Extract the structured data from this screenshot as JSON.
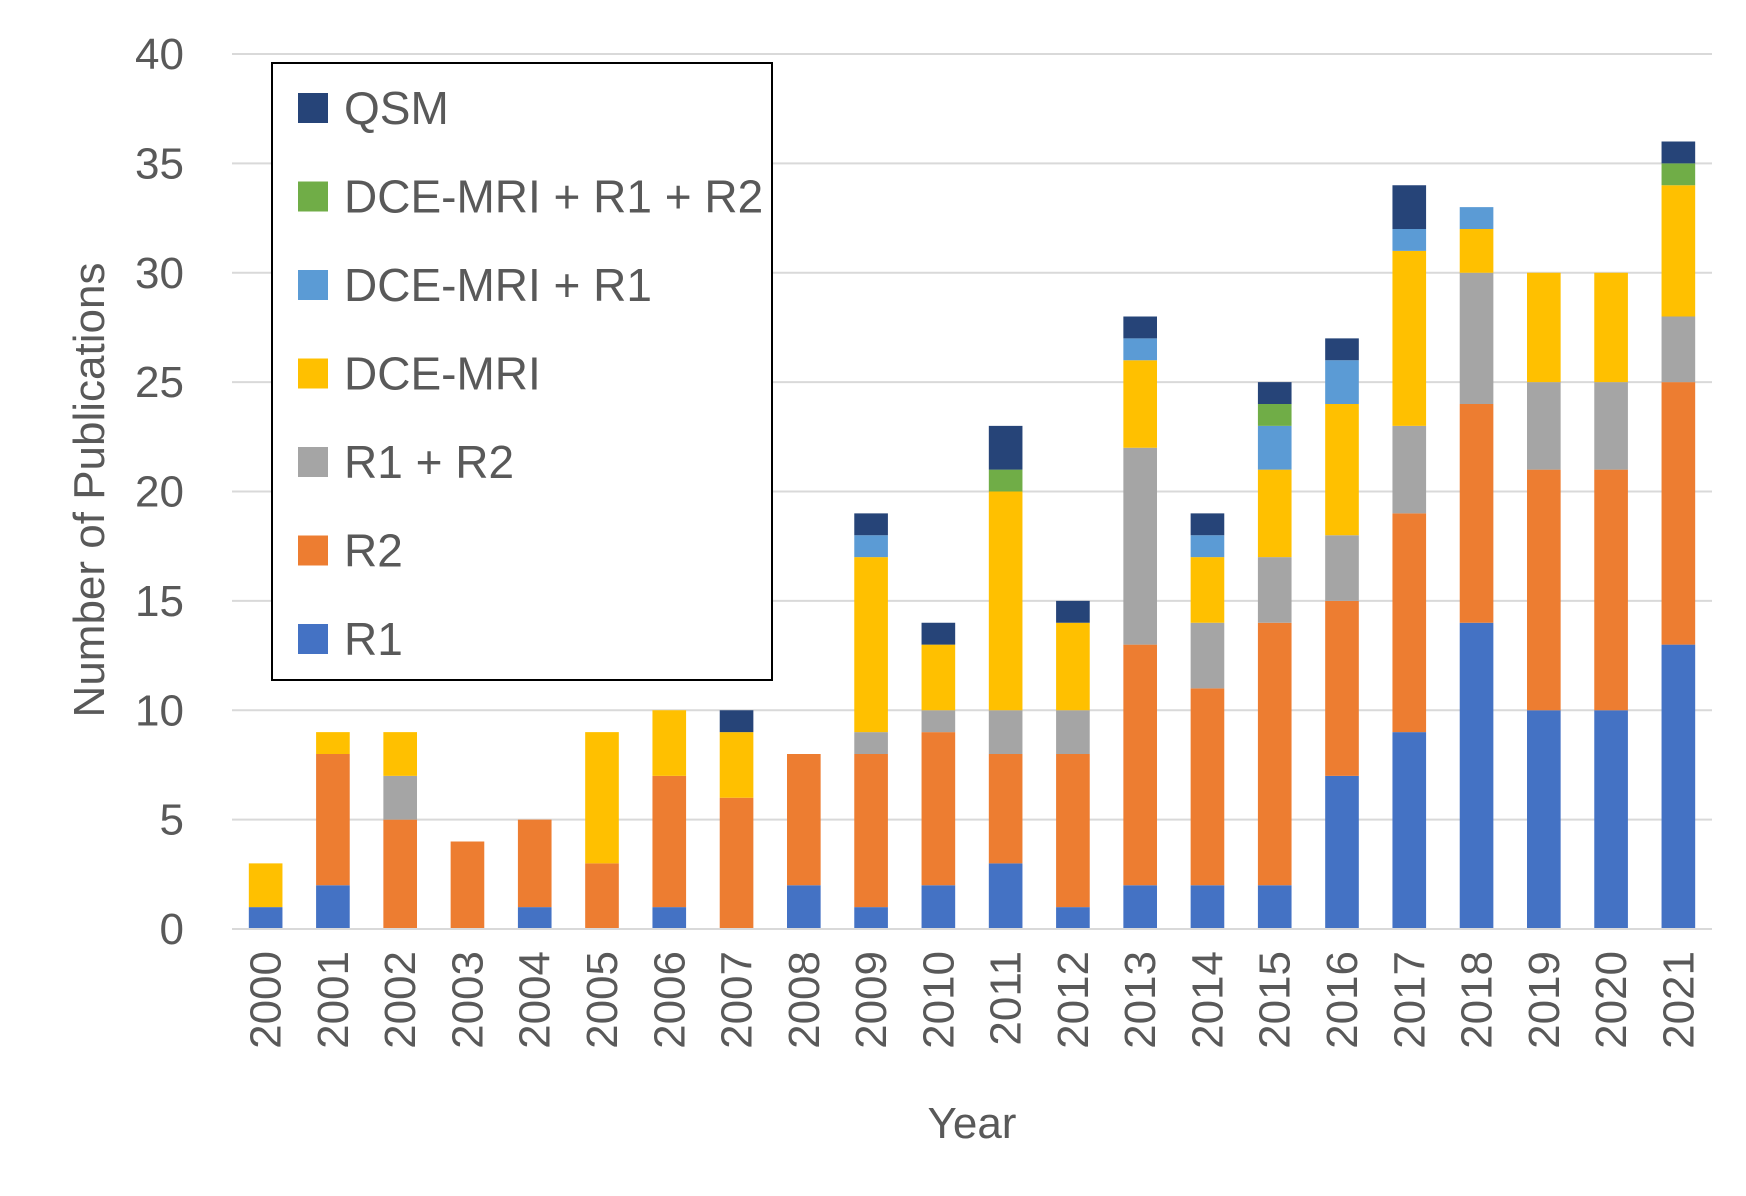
{
  "chart_data": {
    "type": "bar",
    "stacked": true,
    "title": "",
    "xlabel": "Year",
    "ylabel": "Number of Publications",
    "ylim": [
      0,
      40
    ],
    "yticks": [
      0,
      5,
      10,
      15,
      20,
      25,
      30,
      35,
      40
    ],
    "grid": true,
    "legend_position": "top-left",
    "categories": [
      "2000",
      "2001",
      "2002",
      "2003",
      "2004",
      "2005",
      "2006",
      "2007",
      "2008",
      "2009",
      "2010",
      "2011",
      "2012",
      "2013",
      "2014",
      "2015",
      "2016",
      "2017",
      "2018",
      "2019",
      "2020",
      "2021"
    ],
    "series": [
      {
        "name": "R1",
        "color": "#4472C4",
        "values": [
          1,
          2,
          0,
          0,
          1,
          0,
          1,
          0,
          2,
          1,
          2,
          3,
          1,
          2,
          2,
          2,
          7,
          9,
          14,
          10,
          10,
          13
        ]
      },
      {
        "name": "R2",
        "color": "#ED7D31",
        "values": [
          0,
          6,
          5,
          4,
          4,
          3,
          6,
          6,
          6,
          7,
          7,
          5,
          7,
          11,
          9,
          12,
          8,
          10,
          10,
          11,
          11,
          12
        ]
      },
      {
        "name": "R1 + R2",
        "color": "#A5A5A5",
        "values": [
          0,
          0,
          2,
          0,
          0,
          0,
          0,
          0,
          0,
          1,
          1,
          2,
          2,
          9,
          3,
          3,
          3,
          4,
          6,
          4,
          4,
          3
        ]
      },
      {
        "name": "DCE-MRI",
        "color": "#FFC000",
        "values": [
          2,
          1,
          2,
          0,
          0,
          6,
          3,
          3,
          0,
          8,
          3,
          10,
          4,
          4,
          3,
          4,
          6,
          8,
          2,
          5,
          5,
          6
        ]
      },
      {
        "name": "DCE-MRI + R1",
        "color": "#5B9BD5",
        "values": [
          0,
          0,
          0,
          0,
          0,
          0,
          0,
          0,
          0,
          1,
          0,
          0,
          0,
          1,
          1,
          2,
          2,
          1,
          1,
          0,
          0,
          0
        ]
      },
      {
        "name": "DCE-MRI + R1 + R2",
        "color": "#70AD47",
        "values": [
          0,
          0,
          0,
          0,
          0,
          0,
          0,
          0,
          0,
          0,
          0,
          1,
          0,
          0,
          0,
          1,
          0,
          0,
          0,
          0,
          0,
          1
        ]
      },
      {
        "name": "QSM",
        "color": "#264478",
        "values": [
          0,
          0,
          0,
          0,
          0,
          0,
          0,
          1,
          0,
          1,
          1,
          2,
          1,
          1,
          1,
          1,
          1,
          2,
          0,
          0,
          0,
          1
        ]
      }
    ],
    "legend_order": [
      "QSM",
      "DCE-MRI + R1 + R2",
      "DCE-MRI + R1",
      "DCE-MRI",
      "R1 + R2",
      "R2",
      "R1"
    ]
  }
}
